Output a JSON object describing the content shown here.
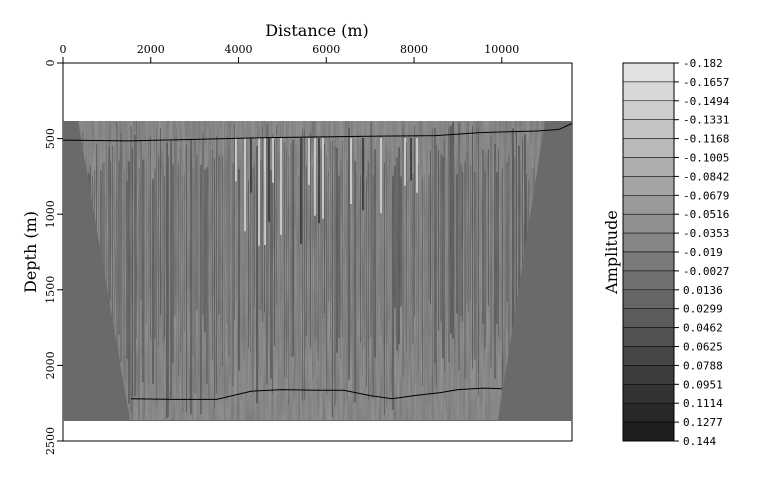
{
  "chart_data": {
    "type": "heatmap",
    "title": "",
    "xlabel": "Distance (m)",
    "ylabel": "Depth (m)",
    "xlim": [
      0,
      11600
    ],
    "ylim": [
      0,
      2500
    ],
    "x_ticks": [
      "0",
      "2000",
      "4000",
      "6000",
      "8000",
      "10000"
    ],
    "y_ticks": [
      "0",
      "500",
      "1000",
      "1500",
      "2000",
      "2500"
    ],
    "data_extent_depth": [
      380,
      2370
    ],
    "colorbar_label": "Amplitude",
    "colorbar_levels": [
      "-0.182",
      "-0.1657",
      "-0.1494",
      "-0.1331",
      "-0.1168",
      "-0.1005",
      "-0.0842",
      "-0.0679",
      "-0.0516",
      "-0.0353",
      "-0.019",
      "-0.0027",
      "0.0136",
      "0.0299",
      "0.0462",
      "0.0625",
      "0.0788",
      "0.0951",
      "0.1114",
      "0.1277",
      "0.144"
    ],
    "top_horizon": [
      [
        0,
        510
      ],
      [
        1500,
        515
      ],
      [
        3000,
        505
      ],
      [
        4500,
        495
      ],
      [
        5500,
        490
      ],
      [
        7000,
        485
      ],
      [
        8500,
        480
      ],
      [
        9500,
        460
      ],
      [
        10800,
        450
      ],
      [
        11300,
        440
      ],
      [
        11600,
        400
      ]
    ],
    "bottom_horizon": [
      [
        1550,
        2220
      ],
      [
        2500,
        2225
      ],
      [
        3500,
        2225
      ],
      [
        4300,
        2170
      ],
      [
        5000,
        2160
      ],
      [
        5800,
        2165
      ],
      [
        6400,
        2165
      ],
      [
        7000,
        2200
      ],
      [
        7500,
        2220
      ],
      [
        8000,
        2200
      ],
      [
        8600,
        2180
      ],
      [
        9000,
        2160
      ],
      [
        9600,
        2150
      ],
      [
        10000,
        2155
      ]
    ]
  }
}
